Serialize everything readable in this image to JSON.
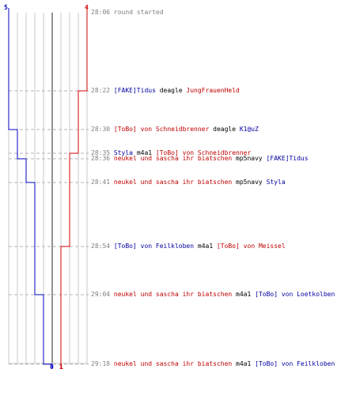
{
  "colors": {
    "team_blue": "#0000c0",
    "team_red": "#d00000",
    "text_blue": "#0000a0",
    "text_red": "#c00000",
    "grid": "#c8c8c8",
    "dash": "#b4b4b4",
    "center": "#7a7a7a",
    "timestamp": "#808080"
  },
  "scores": {
    "blue_start": "5",
    "red_start": "4",
    "blue_end": "0",
    "red_end": "1"
  },
  "events": [
    {
      "time": "28:06",
      "parts": [
        {
          "text": "round started",
          "color": "gray"
        }
      ]
    },
    {
      "time": "28:22",
      "parts": [
        {
          "text": "[FAKE]Tidus",
          "color": "blue"
        },
        {
          "text": " deagle ",
          "color": "black"
        },
        {
          "text": "JungFrauenHeld",
          "color": "red"
        }
      ]
    },
    {
      "time": "28:30",
      "parts": [
        {
          "text": "[ToBo] von Schneidbrenner",
          "color": "red"
        },
        {
          "text": " deagle ",
          "color": "black"
        },
        {
          "text": "K1@uZ",
          "color": "blue"
        }
      ]
    },
    {
      "time": "28:35",
      "parts": [
        {
          "text": "Styla",
          "color": "blue"
        },
        {
          "text": " m4a1 ",
          "color": "black"
        },
        {
          "text": "[ToBo] von Schneidbrenner",
          "color": "red"
        }
      ]
    },
    {
      "time": "28:36",
      "parts": [
        {
          "text": "neukel und sascha ihr biatschen",
          "color": "red"
        },
        {
          "text": " mp5navy ",
          "color": "black"
        },
        {
          "text": "[FAKE]Tidus",
          "color": "blue"
        }
      ]
    },
    {
      "time": "28:41",
      "parts": [
        {
          "text": "neukel und sascha ihr biatschen",
          "color": "red"
        },
        {
          "text": " mp5navy ",
          "color": "black"
        },
        {
          "text": "Styla",
          "color": "blue"
        }
      ]
    },
    {
      "time": "28:54",
      "parts": [
        {
          "text": "[ToBo] von Feilkloben",
          "color": "blue"
        },
        {
          "text": " m4a1 ",
          "color": "black"
        },
        {
          "text": "[ToBo] von Meissel",
          "color": "red"
        }
      ]
    },
    {
      "time": "29:04",
      "parts": [
        {
          "text": "neukel und sascha ihr biatschen",
          "color": "red"
        },
        {
          "text": " m4a1 ",
          "color": "black"
        },
        {
          "text": "[ToBo] von Loetkolben",
          "color": "blue"
        }
      ]
    },
    {
      "time": "29:18",
      "parts": [
        {
          "text": "neukel und sascha ihr biatschen",
          "color": "red"
        },
        {
          "text": " m4a1 ",
          "color": "black"
        },
        {
          "text": "[ToBo] von Feilkloben",
          "color": "blue"
        }
      ]
    }
  ]
}
